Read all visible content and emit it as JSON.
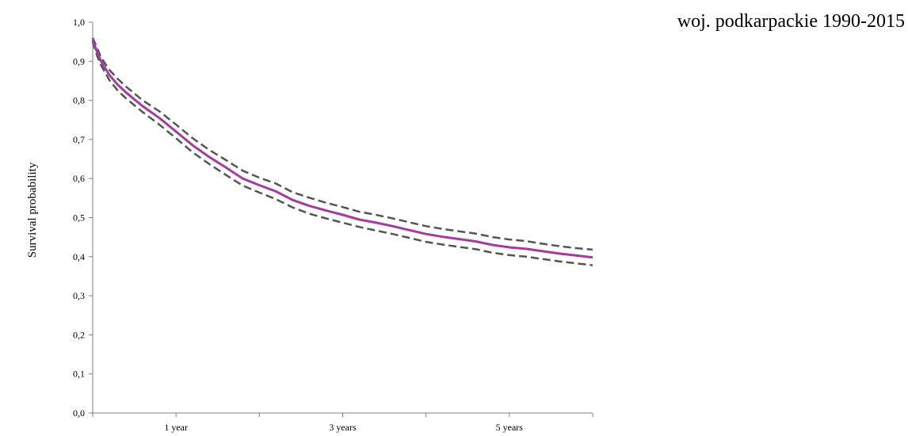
{
  "chart_data": {
    "type": "line",
    "title": "woj. podkarpackie 1990-2015",
    "xlabel": "",
    "ylabel": "Survival probability",
    "ylim": [
      0,
      1
    ],
    "xlim": [
      0,
      6
    ],
    "y_ticks": [
      "0,0",
      "0,1",
      "0,2",
      "0,3",
      "0,4",
      "0,5",
      "0,6",
      "0,7",
      "0,8",
      "0,9",
      "1,0"
    ],
    "x_tick_labels": [
      {
        "value": 1,
        "label": "1 year"
      },
      {
        "value": 3,
        "label": "3 years"
      },
      {
        "value": 5,
        "label": "5 years"
      }
    ],
    "x_minor_ticks": [
      0,
      1,
      2,
      3,
      4,
      5,
      6
    ],
    "grid": false,
    "series": [
      {
        "style": "solid",
        "color": "#a43b9e",
        "x": [
          0,
          0.05,
          0.1,
          0.2,
          0.3,
          0.4,
          0.6,
          0.8,
          1.0,
          1.2,
          1.4,
          1.6,
          1.8,
          2.0,
          2.2,
          2.4,
          2.6,
          2.8,
          3.0,
          3.2,
          3.4,
          3.6,
          3.8,
          4.0,
          4.2,
          4.4,
          4.6,
          4.8,
          5.0,
          5.2,
          5.4,
          5.6,
          5.8,
          6.0
        ],
        "y": [
          0.955,
          0.925,
          0.9,
          0.865,
          0.84,
          0.82,
          0.785,
          0.755,
          0.72,
          0.685,
          0.655,
          0.628,
          0.6,
          0.583,
          0.567,
          0.545,
          0.53,
          0.518,
          0.507,
          0.495,
          0.487,
          0.478,
          0.468,
          0.458,
          0.451,
          0.445,
          0.439,
          0.43,
          0.424,
          0.42,
          0.414,
          0.408,
          0.403,
          0.398
        ]
      },
      {
        "style": "dashed",
        "color": "#555555",
        "x": [
          0,
          0.05,
          0.1,
          0.2,
          0.3,
          0.4,
          0.6,
          0.8,
          1.0,
          1.2,
          1.4,
          1.6,
          1.8,
          2.0,
          2.2,
          2.4,
          2.6,
          2.8,
          3.0,
          3.2,
          3.4,
          3.6,
          3.8,
          4.0,
          4.2,
          4.4,
          4.6,
          4.8,
          5.0,
          5.2,
          5.4,
          5.6,
          5.8,
          6.0
        ],
        "y": [
          0.96,
          0.935,
          0.91,
          0.878,
          0.855,
          0.835,
          0.8,
          0.772,
          0.738,
          0.703,
          0.673,
          0.647,
          0.62,
          0.602,
          0.587,
          0.565,
          0.551,
          0.538,
          0.527,
          0.515,
          0.507,
          0.498,
          0.488,
          0.478,
          0.471,
          0.465,
          0.459,
          0.45,
          0.444,
          0.44,
          0.433,
          0.427,
          0.422,
          0.418
        ]
      },
      {
        "style": "dashed",
        "color": "#555555",
        "x": [
          0,
          0.05,
          0.1,
          0.2,
          0.3,
          0.4,
          0.6,
          0.8,
          1.0,
          1.2,
          1.4,
          1.6,
          1.8,
          2.0,
          2.2,
          2.4,
          2.6,
          2.8,
          3.0,
          3.2,
          3.4,
          3.6,
          3.8,
          4.0,
          4.2,
          4.4,
          4.6,
          4.8,
          5.0,
          5.2,
          5.4,
          5.6,
          5.8,
          6.0
        ],
        "y": [
          0.95,
          0.915,
          0.89,
          0.852,
          0.825,
          0.805,
          0.77,
          0.738,
          0.703,
          0.667,
          0.637,
          0.609,
          0.582,
          0.564,
          0.547,
          0.526,
          0.51,
          0.498,
          0.487,
          0.476,
          0.467,
          0.458,
          0.448,
          0.438,
          0.431,
          0.425,
          0.419,
          0.41,
          0.404,
          0.4,
          0.394,
          0.388,
          0.383,
          0.378
        ]
      }
    ]
  }
}
